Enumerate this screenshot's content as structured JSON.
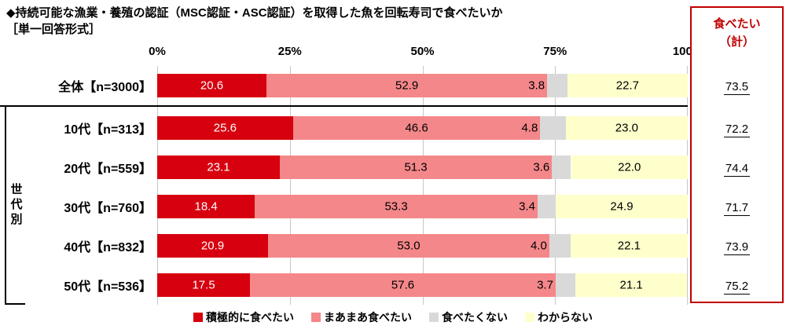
{
  "title": "◆持続可能な漁業・養殖の認証（MSC認証・ASC認証）を取得した魚を回転寿司で食べたいか",
  "subtitle": "［単一回答形式］",
  "group_label": "世代別",
  "summary": {
    "header": "食べたい\n（計）",
    "totals": [
      73.5,
      72.2,
      74.4,
      71.7,
      73.9,
      75.2
    ]
  },
  "colors": {
    "accent_red": "#c00000",
    "series1": "#d7000f",
    "series2": "#f4878a",
    "series3": "#d9d9d9",
    "series4": "#ffffcc",
    "gridline": "#c8c8c8"
  },
  "chart_data": {
    "type": "bar",
    "stacked": true,
    "orientation": "horizontal",
    "title": "持続可能な漁業・養殖の認証（MSC認証・ASC認証）を取得した魚を回転寿司で食べたいか",
    "categories": [
      "全体【n=3000】",
      "10代【n=313】",
      "20代【n=559】",
      "30代【n=760】",
      "40代【n=832】",
      "50代【n=536】"
    ],
    "series": [
      {
        "name": "積極的に食べたい",
        "color": "#d7000f",
        "label_color": "#ffffff",
        "values": [
          20.6,
          25.6,
          23.1,
          18.4,
          20.9,
          17.5
        ]
      },
      {
        "name": "まあまあ食べたい",
        "color": "#f4878a",
        "label_color": "#000000",
        "values": [
          52.9,
          46.6,
          51.3,
          53.3,
          53.0,
          57.6
        ]
      },
      {
        "name": "食べたくない",
        "color": "#d9d9d9",
        "label_color": "#000000",
        "values": [
          3.8,
          4.8,
          3.6,
          3.4,
          4.0,
          3.7
        ]
      },
      {
        "name": "わからない",
        "color": "#ffffcc",
        "label_color": "#000000",
        "values": [
          22.7,
          23.0,
          22.0,
          24.9,
          22.1,
          21.1
        ]
      }
    ],
    "totals": [
      73.5,
      72.2,
      74.4,
      71.7,
      73.9,
      75.2
    ],
    "xlim": [
      0,
      100
    ],
    "x_ticks": [
      "0%",
      "25%",
      "50%",
      "75%",
      "100%"
    ],
    "legend_position": "bottom",
    "grid": true
  }
}
